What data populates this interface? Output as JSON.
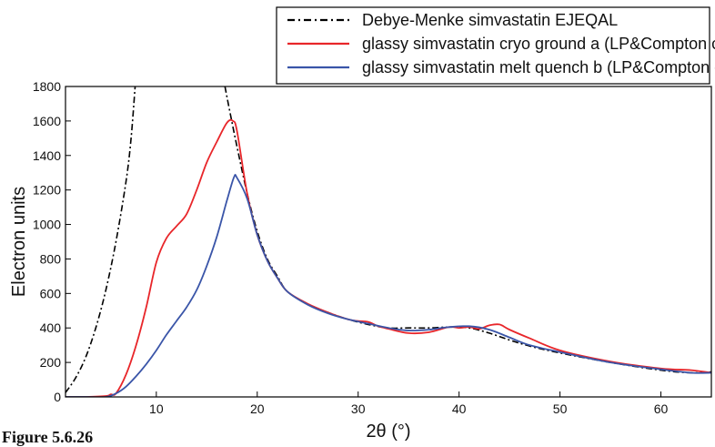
{
  "caption": "Figure 5.6.26",
  "chart_data": {
    "type": "line",
    "xlabel": "2θ (°)",
    "ylabel": "Electron units",
    "xlim": [
      1,
      65
    ],
    "ylim": [
      0,
      1800
    ],
    "xticks": [
      10,
      20,
      30,
      40,
      50,
      60
    ],
    "yticks": [
      0,
      200,
      400,
      600,
      800,
      1000,
      1200,
      1400,
      1600,
      1800
    ],
    "grid": false,
    "legend_position": "top",
    "series": [
      {
        "name": "Debye-Menke simvastatin EJEQAL",
        "color": "#000000",
        "style": "dash-dot",
        "x": [
          1,
          2,
          3,
          4,
          5,
          6,
          7,
          7.5,
          7.9,
          16.8,
          17.3,
          18,
          19,
          20,
          21,
          22,
          23,
          25,
          27,
          29,
          31,
          33,
          35,
          37,
          39,
          41,
          43,
          45,
          47,
          50,
          55,
          60,
          63,
          65
        ],
        "y": [
          25,
          110,
          230,
          400,
          620,
          900,
          1250,
          1500,
          1800,
          1800,
          1650,
          1450,
          1180,
          960,
          800,
          700,
          610,
          540,
          490,
          450,
          420,
          400,
          400,
          400,
          405,
          400,
          370,
          330,
          295,
          255,
          200,
          155,
          140,
          145
        ]
      },
      {
        "name": "glassy simvastatin cryo ground a (LP&Compton corrected)",
        "color": "#e8262a",
        "style": "solid",
        "x": [
          1,
          3,
          5,
          5.5,
          6,
          7,
          8,
          9,
          10,
          11,
          12,
          13,
          14,
          15,
          16,
          17,
          17.6,
          18,
          19,
          20,
          21,
          22,
          23,
          25,
          27,
          29,
          30,
          31,
          32,
          33,
          35,
          37,
          39,
          40,
          41,
          42,
          43,
          44,
          45,
          47,
          50,
          55,
          60,
          63,
          65
        ],
        "y": [
          0,
          0,
          5,
          15,
          20,
          130,
          300,
          520,
          780,
          920,
          990,
          1060,
          1200,
          1360,
          1480,
          1590,
          1600,
          1540,
          1180,
          940,
          790,
          690,
          610,
          540,
          490,
          450,
          440,
          435,
          410,
          395,
          370,
          375,
          405,
          400,
          405,
          395,
          415,
          420,
          390,
          340,
          270,
          205,
          165,
          155,
          140
        ]
      },
      {
        "name": "glassy simvastatin melt quench b (LP&Compton corrected)",
        "color": "#3a55a8",
        "style": "solid",
        "x": [
          1,
          3,
          5,
          6,
          7,
          8,
          9,
          10,
          11,
          12,
          13,
          14,
          15,
          16,
          17,
          17.7,
          18,
          19,
          20,
          21,
          22,
          23,
          25,
          27,
          29,
          31,
          33,
          35,
          37,
          39,
          41,
          43,
          45,
          47,
          50,
          55,
          60,
          63,
          65
        ],
        "y": [
          0,
          0,
          0,
          20,
          60,
          120,
          190,
          270,
          360,
          440,
          520,
          620,
          760,
          930,
          1140,
          1275,
          1270,
          1150,
          940,
          790,
          690,
          610,
          535,
          485,
          450,
          425,
          400,
          385,
          390,
          405,
          410,
          390,
          345,
          300,
          260,
          200,
          160,
          140,
          140
        ]
      }
    ]
  }
}
